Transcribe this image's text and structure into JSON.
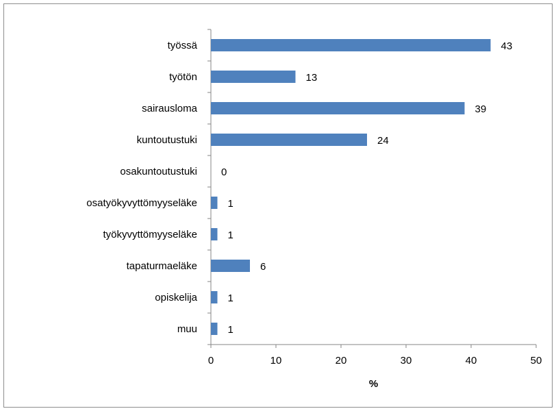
{
  "chart_data": {
    "type": "bar",
    "orientation": "horizontal",
    "title": "",
    "xlabel": "%",
    "ylabel": "",
    "xlim": [
      0,
      50
    ],
    "x_ticks": [
      0,
      10,
      20,
      30,
      40,
      50
    ],
    "grid": false,
    "legend": "none",
    "bar_color": "#4f81bd",
    "categories": [
      "työssä",
      "työtön",
      "sairausloma",
      "kuntoutustuki",
      "osakuntoutustuki",
      "osatyökyvyttömyyseläke",
      "työkyvyttömyyseläke",
      "tapaturmaeläke",
      "opiskelija",
      "muu"
    ],
    "values": [
      43,
      13,
      39,
      24,
      0,
      1,
      1,
      6,
      1,
      1
    ],
    "data_labels": [
      "43",
      "13",
      "39",
      "24",
      "0",
      "1",
      "1",
      "6",
      "1",
      "1"
    ]
  }
}
